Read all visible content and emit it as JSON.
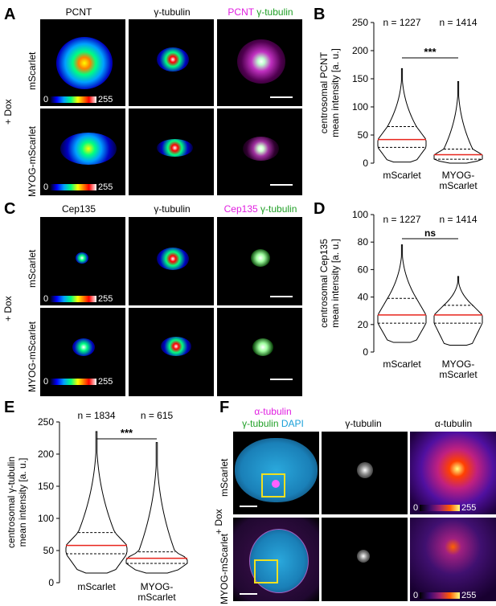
{
  "panels": {
    "A": {
      "letter": "A",
      "headers": [
        "PCNT",
        "γ-tubulin"
      ],
      "merge": {
        "a": "PCNT",
        "b": "γ-tubulin"
      },
      "rows": [
        "mScarlet",
        "MYOG-mScarlet"
      ],
      "dox": "+ Dox",
      "cb_min": "0",
      "cb_max": "255"
    },
    "C": {
      "letter": "C",
      "headers": [
        "Cep135",
        "γ-tubulin"
      ],
      "merge": {
        "a": "Cep135",
        "b": "γ-tubulin"
      },
      "rows": [
        "mScarlet",
        "MYOG-mScarlet"
      ],
      "dox": "+ Dox",
      "cb_min": "0",
      "cb_max": "255"
    },
    "F": {
      "letter": "F",
      "legend": {
        "a": "α-tubulin",
        "b": "γ-tubulin",
        "c": "DAPI"
      },
      "headers": [
        "γ-tubulin",
        "α-tubulin"
      ],
      "rows": [
        "mScarlet",
        "MYOG-mScarlet"
      ],
      "dox": "+ Dox",
      "cb_min": "0",
      "cb_max": "255"
    },
    "B": {
      "letter": "B"
    },
    "D": {
      "letter": "D"
    },
    "E": {
      "letter": "E"
    }
  },
  "colors": {
    "median": "#e8241c",
    "magenta": "#e01ee0",
    "green": "#21a027",
    "cyan": "#1aa0d8"
  },
  "chart_data": [
    {
      "id": "B",
      "type": "violin",
      "categories": [
        "mScarlet",
        "MYOG-\nmScarlet"
      ],
      "ylabel": "centrosomal PCNT\nmean intensity [a. u.]",
      "ylim": [
        0,
        250
      ],
      "yticks": [
        0,
        50,
        100,
        150,
        200,
        250
      ],
      "n": [
        "n = 1227",
        "n = 1414"
      ],
      "significance": "***",
      "series": [
        {
          "median": 42,
          "q1": 28,
          "q3": 65,
          "max": 168,
          "min": 2
        },
        {
          "median": 15,
          "q1": 7,
          "q3": 25,
          "max": 145,
          "min": 0
        }
      ]
    },
    {
      "id": "D",
      "type": "violin",
      "categories": [
        "mScarlet",
        "MYOG-\nmScarlet"
      ],
      "ylabel": "centrosomal Cep135\nmean intensity [a. u.]",
      "ylim": [
        0,
        100
      ],
      "yticks": [
        0,
        20,
        40,
        60,
        80,
        100
      ],
      "n": [
        "n = 1227",
        "n = 1414"
      ],
      "significance": "ns",
      "series": [
        {
          "median": 27,
          "q1": 21,
          "q3": 39,
          "max": 78,
          "min": 7
        },
        {
          "median": 27,
          "q1": 21,
          "q3": 34,
          "max": 55,
          "min": 5
        }
      ]
    },
    {
      "id": "E",
      "type": "violin",
      "categories": [
        "mScarlet",
        "MYOG-\nmScarlet"
      ],
      "ylabel": "centrosomal γ-tubulin\nmean intensity [a. u.]",
      "ylim": [
        0,
        250
      ],
      "yticks": [
        0,
        50,
        100,
        150,
        200,
        250
      ],
      "n": [
        "n = 1834",
        "n = 615"
      ],
      "significance": "***",
      "series": [
        {
          "median": 58,
          "q1": 45,
          "q3": 78,
          "max": 235,
          "min": 15
        },
        {
          "median": 38,
          "q1": 30,
          "q3": 48,
          "max": 218,
          "min": 15
        }
      ]
    }
  ]
}
